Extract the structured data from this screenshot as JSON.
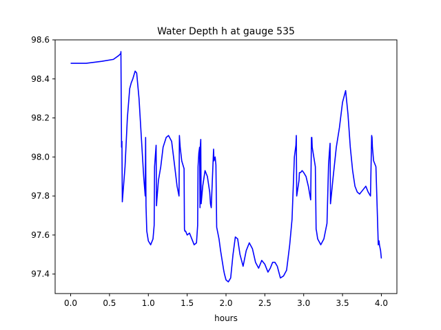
{
  "chart_data": {
    "type": "line",
    "title": "Water Depth h at gauge 535",
    "xlabel": "hours",
    "ylabel": "",
    "xlim": [
      -0.2,
      4.2
    ],
    "ylim": [
      97.3,
      98.6
    ],
    "xticks": [
      0.0,
      0.5,
      1.0,
      1.5,
      2.0,
      2.5,
      3.0,
      3.5,
      4.0
    ],
    "xtick_labels": [
      "0.0",
      "0.5",
      "1.0",
      "1.5",
      "2.0",
      "2.5",
      "3.0",
      "3.5",
      "4.0"
    ],
    "yticks": [
      97.4,
      97.6,
      97.8,
      98.0,
      98.2,
      98.4,
      98.6
    ],
    "ytick_labels": [
      "97.4",
      "97.6",
      "97.8",
      "98.0",
      "98.2",
      "98.4",
      "98.6"
    ],
    "grid": false,
    "colors": {
      "line": "#0000ff",
      "axes": "#000000",
      "background": "#ffffff"
    },
    "series": [
      {
        "x": [
          0.0,
          0.2,
          0.4,
          0.55,
          0.62,
          0.645,
          0.647,
          0.655,
          0.66,
          0.665,
          0.7,
          0.73,
          0.76,
          0.78,
          0.8,
          0.83,
          0.85,
          0.88,
          0.91,
          0.94,
          0.96,
          0.965,
          0.97,
          0.98,
          1.0,
          1.03,
          1.06,
          1.075,
          1.08,
          1.1,
          1.105,
          1.11,
          1.13,
          1.16,
          1.19,
          1.23,
          1.26,
          1.3,
          1.34,
          1.37,
          1.395,
          1.4,
          1.41,
          1.43,
          1.46,
          1.465,
          1.47,
          1.48,
          1.5,
          1.53,
          1.56,
          1.59,
          1.62,
          1.635,
          1.64,
          1.65,
          1.66,
          1.665,
          1.67,
          1.675,
          1.68,
          1.7,
          1.73,
          1.76,
          1.79,
          1.8,
          1.81,
          1.84,
          1.845,
          1.86,
          1.87,
          1.88,
          1.91,
          1.93,
          1.95,
          1.97,
          1.98,
          2.0,
          2.03,
          2.06,
          2.09,
          2.12,
          2.15,
          2.18,
          2.22,
          2.26,
          2.3,
          2.34,
          2.38,
          2.42,
          2.46,
          2.5,
          2.54,
          2.57,
          2.6,
          2.63,
          2.66,
          2.7,
          2.74,
          2.78,
          2.82,
          2.85,
          2.88,
          2.9,
          2.905,
          2.91,
          2.94,
          2.945,
          2.96,
          2.98,
          3.0,
          3.03,
          3.06,
          3.09,
          3.1,
          3.105,
          3.11,
          3.15,
          3.16,
          3.165,
          3.18,
          3.22,
          3.26,
          3.3,
          3.32,
          3.33,
          3.34,
          3.345,
          3.36,
          3.38,
          3.42,
          3.46,
          3.5,
          3.54,
          3.57,
          3.6,
          3.63,
          3.66,
          3.69,
          3.72,
          3.76,
          3.8,
          3.83,
          3.86,
          3.875,
          3.88,
          3.885,
          3.9,
          3.93,
          3.955,
          3.96,
          3.97,
          3.975,
          3.99,
          4.0
        ],
        "y": [
          98.48,
          98.48,
          98.49,
          98.5,
          98.52,
          98.53,
          98.54,
          98.05,
          98.08,
          97.77,
          97.95,
          98.2,
          98.35,
          98.38,
          98.4,
          98.44,
          98.43,
          98.3,
          98.1,
          97.9,
          97.8,
          98.1,
          97.75,
          97.62,
          97.57,
          97.55,
          97.58,
          97.65,
          97.95,
          98.06,
          97.75,
          97.78,
          97.88,
          97.95,
          98.05,
          98.1,
          98.11,
          98.08,
          97.95,
          97.85,
          97.8,
          98.11,
          98.05,
          97.98,
          97.94,
          97.63,
          97.62,
          97.62,
          97.6,
          97.61,
          97.58,
          97.55,
          97.56,
          97.65,
          97.95,
          98.02,
          98.05,
          97.74,
          98.06,
          98.09,
          97.76,
          97.85,
          97.93,
          97.9,
          97.82,
          97.76,
          97.74,
          98.04,
          97.98,
          98.0,
          97.96,
          97.64,
          97.58,
          97.52,
          97.47,
          97.42,
          97.4,
          97.37,
          97.36,
          97.38,
          97.5,
          97.59,
          97.58,
          97.5,
          97.44,
          97.52,
          97.56,
          97.53,
          97.46,
          97.43,
          97.47,
          97.45,
          97.41,
          97.43,
          97.46,
          97.46,
          97.44,
          97.38,
          97.39,
          97.42,
          97.55,
          97.68,
          98.0,
          98.06,
          98.11,
          97.8,
          97.88,
          97.92,
          97.92,
          97.93,
          97.92,
          97.9,
          97.85,
          97.78,
          98.1,
          98.1,
          98.05,
          97.95,
          97.63,
          97.62,
          97.58,
          97.55,
          97.58,
          97.66,
          97.96,
          98.02,
          98.07,
          97.76,
          97.82,
          97.9,
          98.05,
          98.15,
          98.28,
          98.34,
          98.22,
          98.05,
          97.93,
          97.85,
          97.82,
          97.81,
          97.83,
          97.85,
          97.82,
          97.8,
          98.11,
          98.1,
          98.05,
          97.98,
          97.95,
          97.62,
          97.55,
          97.57,
          97.55,
          97.52,
          97.48
        ]
      }
    ]
  }
}
